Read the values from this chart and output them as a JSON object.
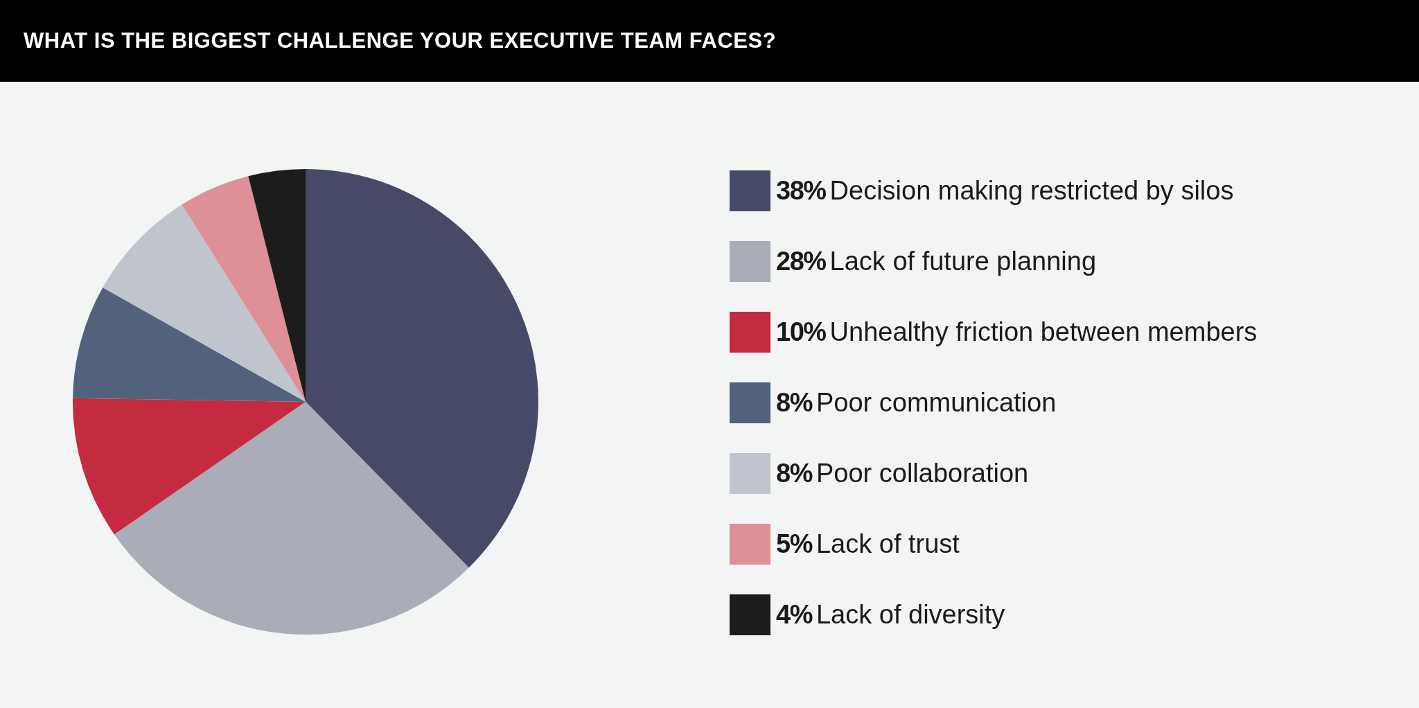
{
  "chart_data": {
    "type": "pie",
    "title": "WHAT IS THE BIGGEST CHALLENGE YOUR EXECUTIVE TEAM FACES?",
    "categories": [
      "Decision making restricted by silos",
      "Lack of future planning",
      "Unhealthy friction between members",
      "Poor communication",
      "Poor collaboration",
      "Lack of trust",
      "Lack of diversity"
    ],
    "values": [
      38,
      28,
      10,
      8,
      8,
      5,
      4
    ],
    "value_labels": [
      "38%",
      "28%",
      "10%",
      "8%",
      "8%",
      "5%",
      "4%"
    ],
    "colors": [
      "#474a67",
      "#a8adb8",
      "#c42b40",
      "#52627c",
      "#c0c4cd",
      "#de8f98",
      "#1c1c1c"
    ],
    "legend": "right"
  }
}
